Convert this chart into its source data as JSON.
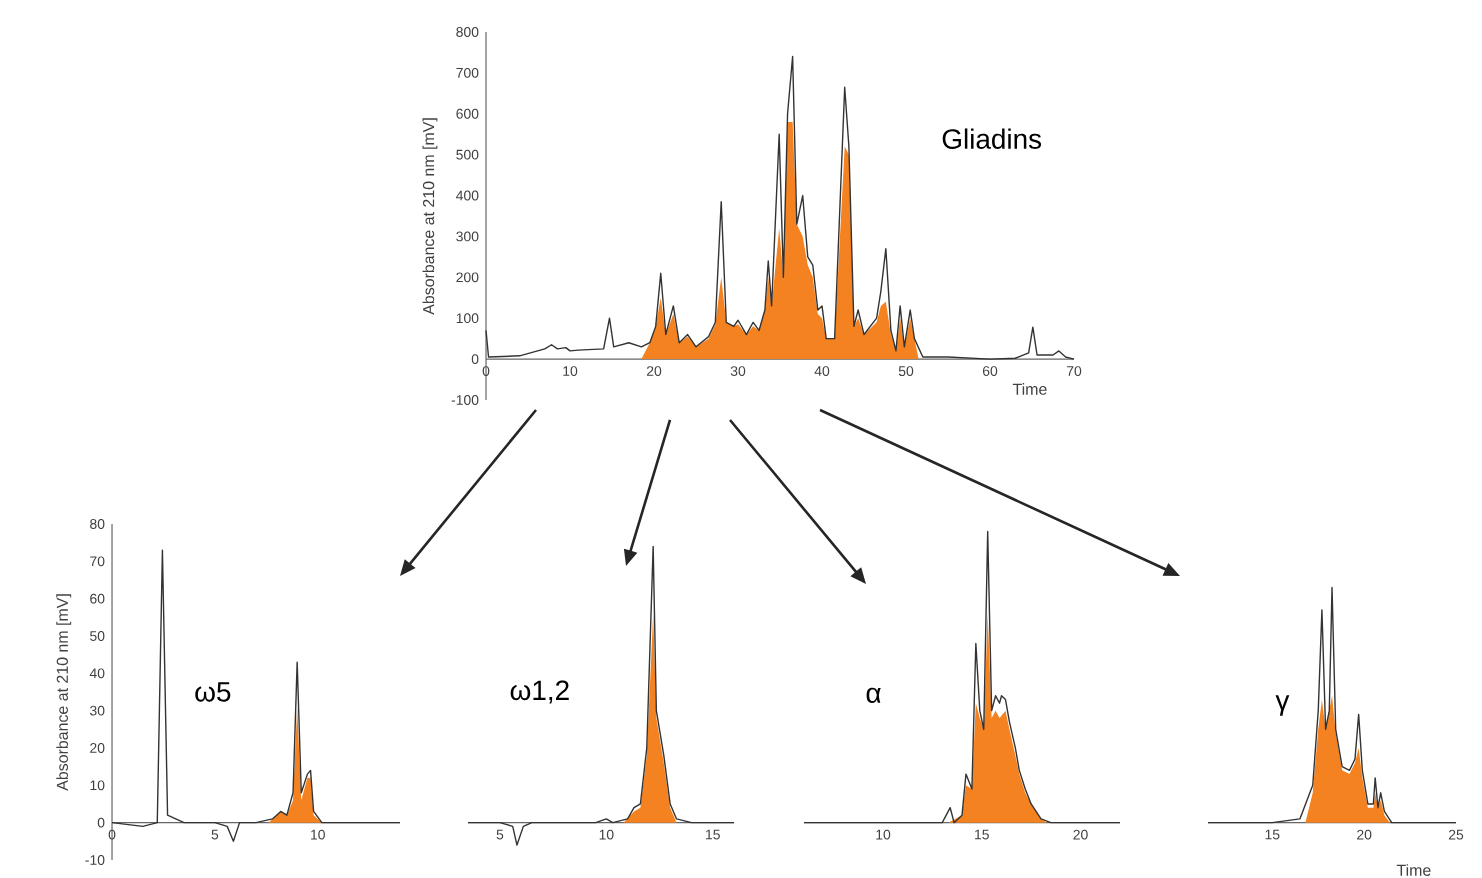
{
  "chart_data": [
    {
      "type": "line",
      "title": "Gliadins",
      "xlabel": "Time",
      "ylabel": "Absorbance  at 210 nm [mV]",
      "xlim": [
        0,
        70
      ],
      "xticks": [
        0,
        10,
        20,
        30,
        40,
        50,
        60,
        70
      ],
      "ylim": [
        -100,
        800
      ],
      "yticks": [
        -100,
        0,
        100,
        200,
        300,
        400,
        500,
        600,
        700,
        800
      ],
      "series": [
        {
          "type": "area",
          "color": "#f58220",
          "x": [
            18.5,
            19.5,
            20.2,
            20.8,
            21.4,
            22.3,
            23,
            24,
            25,
            26.5,
            27.3,
            28,
            28.6,
            29.5,
            30,
            31,
            31.8,
            32.5,
            33.2,
            33.6,
            34,
            34.9,
            35.4,
            35.9,
            36.5,
            37,
            37.7,
            38.3,
            38.9,
            39.5,
            40,
            40.5,
            41.5,
            42.7,
            43.2,
            43.8,
            44.3,
            45,
            46.5,
            47,
            47.6,
            48.2,
            48.8,
            49.3,
            49.8,
            50.5,
            51,
            51.5
          ],
          "values": [
            0,
            40,
            80,
            150,
            60,
            110,
            40,
            55,
            30,
            50,
            85,
            200,
            90,
            80,
            85,
            60,
            80,
            70,
            120,
            200,
            130,
            320,
            200,
            580,
            580,
            330,
            300,
            230,
            200,
            110,
            100,
            50,
            50,
            520,
            500,
            80,
            100,
            60,
            90,
            130,
            140,
            60,
            20,
            100,
            30,
            100,
            50,
            0
          ]
        },
        {
          "color": "#333333",
          "x": [
            0,
            0.3,
            4,
            7,
            7.8,
            8.5,
            9.5,
            10,
            11,
            14,
            14.7,
            15.2,
            17,
            18.5,
            19.5,
            20.2,
            20.8,
            21.4,
            22.3,
            23,
            24,
            25,
            26.5,
            27.3,
            28,
            28.6,
            29.5,
            30,
            31,
            31.8,
            32.5,
            33.2,
            33.6,
            34,
            34.9,
            35.4,
            35.9,
            36.5,
            37,
            37.7,
            38.3,
            38.9,
            39.5,
            40,
            40.5,
            41.5,
            42.7,
            43.2,
            43.8,
            44.3,
            45,
            46.5,
            47,
            47.6,
            48.2,
            48.8,
            49.3,
            49.8,
            50.5,
            51,
            52,
            55,
            60,
            63,
            64.6,
            65.1,
            65.6,
            67.5,
            68.2,
            69,
            70
          ],
          "values": [
            70,
            5,
            8,
            25,
            35,
            25,
            28,
            20,
            22,
            25,
            100,
            30,
            40,
            30,
            40,
            80,
            210,
            60,
            130,
            40,
            60,
            30,
            55,
            90,
            385,
            90,
            80,
            95,
            60,
            90,
            70,
            120,
            240,
            130,
            550,
            200,
            600,
            740,
            330,
            400,
            250,
            230,
            120,
            130,
            50,
            50,
            665,
            520,
            80,
            120,
            60,
            100,
            165,
            270,
            70,
            20,
            130,
            30,
            120,
            50,
            5,
            5,
            0,
            2,
            15,
            78,
            10,
            10,
            20,
            5,
            0
          ]
        }
      ]
    },
    {
      "type": "line",
      "title": "ω5",
      "ylabel": "Absorbance  at 210 nm [mV]",
      "xlim": [
        0,
        14
      ],
      "xticks": [
        0,
        5,
        10
      ],
      "ylim": [
        -10,
        80
      ],
      "yticks": [
        -10,
        0,
        10,
        20,
        30,
        40,
        50,
        60,
        70,
        80
      ],
      "series": [
        {
          "type": "area",
          "color": "#f58220",
          "x": [
            7.6,
            8.2,
            8.5,
            8.8,
            9.0,
            9.2,
            9.5,
            9.65,
            9.8,
            10.2
          ],
          "values": [
            0,
            3,
            2,
            6,
            31,
            6,
            12,
            12,
            2,
            0
          ]
        },
        {
          "color": "#333333",
          "x": [
            0,
            1.5,
            2.2,
            2.45,
            2.7,
            3.5,
            5,
            5.6,
            5.9,
            6.2,
            7,
            7.8,
            8.2,
            8.5,
            8.8,
            9.0,
            9.2,
            9.5,
            9.65,
            9.8,
            10.2,
            14
          ],
          "values": [
            0,
            -1,
            0,
            73,
            2,
            0,
            0,
            -1,
            -5,
            0,
            0,
            1,
            3,
            2,
            8,
            43,
            8,
            13,
            14,
            3,
            0,
            0
          ]
        }
      ]
    },
    {
      "type": "line",
      "title": "ω1,2",
      "xlim": [
        3.5,
        16
      ],
      "xticks": [
        5,
        10,
        15
      ],
      "ylim": [
        -10,
        80
      ],
      "tick_labels": "x",
      "series": [
        {
          "type": "area",
          "color": "#f58220",
          "x": [
            10.8,
            11.3,
            11.6,
            11.9,
            12.2,
            12.35,
            12.7,
            13.0,
            13.3
          ],
          "values": [
            0,
            3,
            4,
            18,
            56,
            28,
            16,
            4,
            0
          ]
        },
        {
          "color": "#333333",
          "x": [
            3.5,
            5,
            5.6,
            5.8,
            6.1,
            6.5,
            9.5,
            10,
            10.3,
            11,
            11.3,
            11.6,
            11.9,
            12.2,
            12.35,
            12.7,
            13.0,
            13.3,
            14,
            16
          ],
          "values": [
            0,
            0,
            -1,
            -6,
            -1,
            0,
            0,
            1,
            0,
            1,
            4,
            5,
            20,
            74,
            30,
            18,
            5,
            1,
            0,
            0
          ]
        }
      ]
    },
    {
      "type": "line",
      "title": "α",
      "xlim": [
        6,
        22
      ],
      "xticks": [
        10,
        15,
        20
      ],
      "ylim": [
        -10,
        80
      ],
      "tick_labels": "x",
      "series": [
        {
          "type": "area",
          "color": "#f58220",
          "x": [
            13.3,
            14,
            14.2,
            14.5,
            14.7,
            14.9,
            15.1,
            15.3,
            15.5,
            15.7,
            15.9,
            16.2,
            16.4,
            16.7,
            16.9,
            17.2,
            17.5,
            18,
            18.3
          ],
          "values": [
            0,
            2,
            10,
            9,
            32,
            28,
            25,
            56,
            28,
            30,
            28,
            30,
            25,
            18,
            13,
            8,
            5,
            1,
            0
          ]
        },
        {
          "color": "#333333",
          "x": [
            6,
            13,
            13.4,
            13.6,
            14,
            14.2,
            14.5,
            14.7,
            14.9,
            15.1,
            15.3,
            15.5,
            15.7,
            15.9,
            16.0,
            16.2,
            16.4,
            16.7,
            16.9,
            17.2,
            17.5,
            18,
            18.5,
            22
          ],
          "values": [
            0,
            0,
            4,
            0,
            2,
            13,
            9,
            48,
            30,
            25,
            78,
            30,
            34,
            32,
            34,
            33,
            27,
            20,
            14,
            9,
            5,
            1,
            0,
            0
          ]
        }
      ]
    },
    {
      "type": "line",
      "title": "γ",
      "xlabel": "Time",
      "xlim": [
        11.5,
        25
      ],
      "xticks": [
        15,
        20,
        25
      ],
      "ylim": [
        -10,
        80
      ],
      "tick_labels": "x",
      "series": [
        {
          "type": "area",
          "color": "#f58220",
          "x": [
            16.8,
            17.2,
            17.5,
            17.7,
            17.9,
            18.1,
            18.25,
            18.45,
            18.8,
            19.2,
            19.5,
            19.7,
            19.9,
            20.2,
            20.5,
            20.6,
            20.75,
            20.9,
            21.1,
            21.4
          ],
          "values": [
            0,
            8,
            25,
            33,
            25,
            30,
            34,
            24,
            14,
            13,
            16,
            20,
            12,
            4,
            4,
            8,
            4,
            6,
            2,
            0
          ]
        },
        {
          "color": "#333333",
          "x": [
            11.5,
            15,
            16.5,
            17.2,
            17.5,
            17.7,
            17.9,
            18.1,
            18.25,
            18.45,
            18.8,
            19.2,
            19.5,
            19.7,
            19.9,
            20.2,
            20.5,
            20.6,
            20.75,
            20.9,
            21.1,
            21.5,
            25
          ],
          "values": [
            0,
            0,
            1,
            10,
            30,
            57,
            25,
            30,
            63,
            25,
            15,
            14,
            17,
            29,
            14,
            5,
            5,
            12,
            4,
            8,
            3,
            0,
            0
          ]
        }
      ]
    }
  ]
}
